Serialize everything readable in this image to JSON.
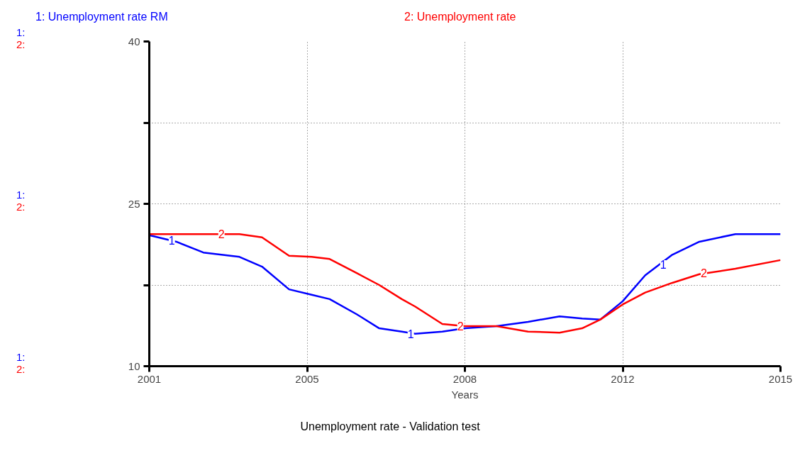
{
  "chart_data": {
    "type": "line",
    "title": "Unemployment rate - Validation test",
    "xlabel": "Years",
    "x": [
      2001,
      2001.6,
      2002.2,
      2003.0,
      2003.5,
      2004.1,
      2004.6,
      2005.0,
      2005.6,
      2006.1,
      2006.6,
      2006.9,
      2007.5,
      2008.0,
      2008.7,
      2009.4,
      2010.1,
      2010.6,
      2011.0,
      2011.5,
      2012.0,
      2012.6,
      2013.2,
      2014.0,
      2015.0
    ],
    "series": [
      {
        "name": "1: Unemployment rate RM",
        "color": "#0000ff",
        "values": [
          22.1,
          21.5,
          20.5,
          20.1,
          19.2,
          17.1,
          16.6,
          16.2,
          14.8,
          13.5,
          13.2,
          13.0,
          13.2,
          13.5,
          13.7,
          14.1,
          14.6,
          14.4,
          14.3,
          16.0,
          18.4,
          20.3,
          21.5,
          22.2,
          22.2
        ]
      },
      {
        "name": "2: Unemployment rate",
        "color": "#ff0000",
        "values": [
          22.2,
          22.2,
          22.2,
          22.2,
          21.9,
          20.2,
          20.1,
          19.9,
          18.6,
          17.5,
          16.2,
          15.5,
          13.9,
          13.7,
          13.7,
          13.2,
          13.1,
          13.5,
          14.3,
          15.7,
          16.8,
          17.7,
          18.5,
          19.0,
          19.8
        ]
      }
    ],
    "xlim": [
      2001,
      2015
    ],
    "xticks": [
      2001,
      {
        "value": 2004.5,
        "label": "2005"
      },
      2008,
      {
        "value": 2011.5,
        "label": "2012"
      },
      2015
    ],
    "ylim": [
      10,
      40
    ],
    "yticks": [
      10,
      {
        "value": 17.5,
        "label": null
      },
      25,
      {
        "value": 32.5,
        "label": null
      },
      40
    ],
    "grid": true,
    "annotations": [
      {
        "text": "1",
        "x": 2001.5,
        "y": 21.6
      },
      {
        "text": "2",
        "x": 2002.6,
        "y": 22.2
      },
      {
        "text": "1",
        "x": 2006.8,
        "y": 13.0
      },
      {
        "text": "2",
        "x": 2007.9,
        "y": 13.7
      },
      {
        "text": "1",
        "x": 2012.4,
        "y": 19.4
      },
      {
        "text": "2",
        "x": 2013.3,
        "y": 18.6
      },
      "1:",
      "2:",
      "1:",
      "2:",
      "1:",
      "2:"
    ]
  }
}
